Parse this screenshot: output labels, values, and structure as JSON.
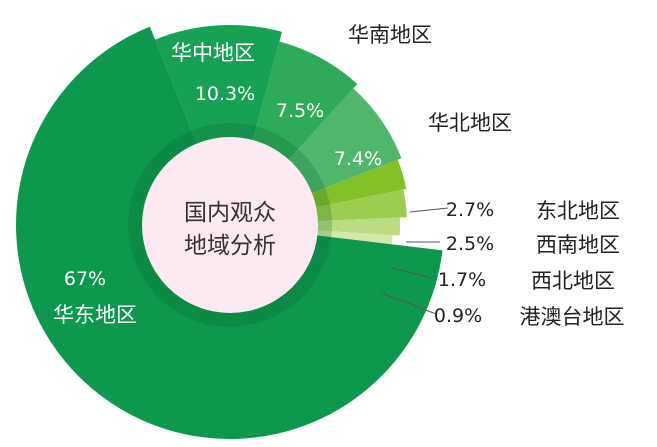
{
  "chart_data": {
    "type": "pie",
    "title": "国内观众地域分析",
    "title_lines": [
      "国内观众",
      "地域分析"
    ],
    "unit": "%",
    "slices": [
      {
        "name": "华中地区",
        "value": 10.3,
        "label": "10.3%",
        "color": "#16a155"
      },
      {
        "name": "华南地区",
        "value": 7.5,
        "label": "7.5%",
        "color": "#2dab58"
      },
      {
        "name": "华北地区",
        "value": 7.4,
        "label": "7.4%",
        "color": "#4fb66c"
      },
      {
        "name": "东北地区",
        "value": 2.7,
        "label": "2.7%",
        "color": "#84c127"
      },
      {
        "name": "西南地区",
        "value": 2.5,
        "label": "2.5%",
        "color": "#9ccd4c"
      },
      {
        "name": "西北地区",
        "value": 1.7,
        "label": "1.7%",
        "color": "#bcdc84"
      },
      {
        "name": "港澳台地区",
        "value": 0.9,
        "label": "0.9%",
        "color": "#d4e9a8"
      },
      {
        "name": "华东地区",
        "value": 67,
        "label": "67%",
        "color": "#0e984e"
      }
    ],
    "center_color": "#fde9f1"
  }
}
